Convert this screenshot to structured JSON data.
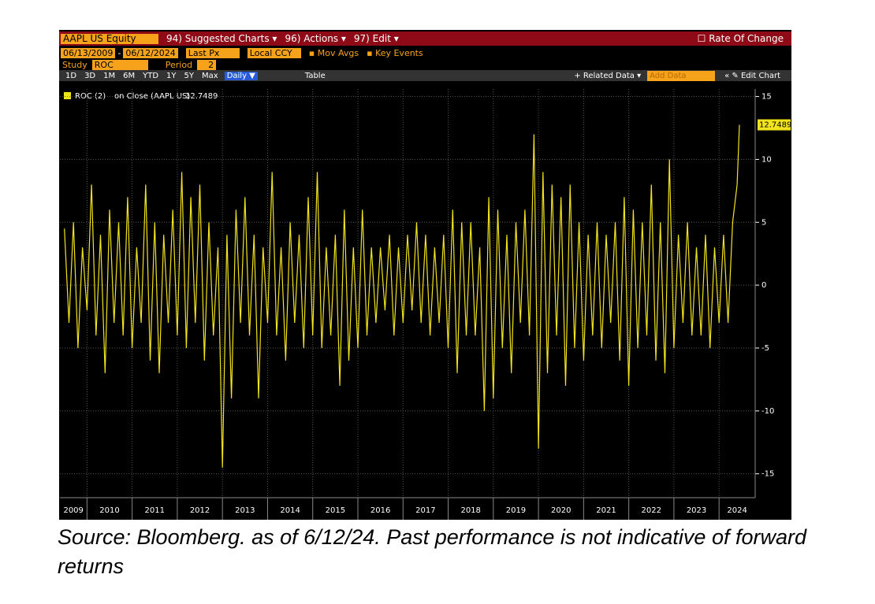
{
  "header": {
    "security": "AAPL US Equity",
    "menu": [
      "94) Suggested Charts ▾",
      "96) Actions ▾",
      "97) Edit ▾"
    ],
    "chart_name": "Rate Of Change"
  },
  "settings": {
    "start_date": "06/13/2009",
    "date_sep": "-",
    "end_date": "06/12/2024",
    "price": "Last Px",
    "currency": "Local CCY",
    "mov_avgs": "Mov Avgs",
    "key_events": "Key Events",
    "study_label": "Study",
    "study": "ROC",
    "period_label": "Period",
    "period": "2"
  },
  "toolbar": {
    "ranges": [
      "1D",
      "3D",
      "1M",
      "6M",
      "YTD",
      "1Y",
      "5Y",
      "Max"
    ],
    "frequency": "Daily ▼",
    "table": "Table",
    "related": "+ Related Data ▾",
    "add_data": "Add Data",
    "edit_chart": "Edit Chart"
  },
  "chart_data": {
    "type": "line",
    "legend_value_suffix": "on Close (AAPL US)",
    "xlim": [
      2009.4,
      2024.8
    ],
    "xticks": [
      2009,
      2010,
      2011,
      2012,
      2013,
      2014,
      2015,
      2016,
      2017,
      2018,
      2019,
      2020,
      2021,
      2022,
      2023,
      2024
    ],
    "ylim": [
      -16.9,
      15.6
    ],
    "yticks": [
      -15,
      -10,
      -5,
      0,
      5,
      10,
      15
    ],
    "grid": true,
    "series": [
      {
        "name": "ROC (2)",
        "color": "#f2e41c",
        "x": [
          2009.5,
          2009.6,
          2009.7,
          2009.8,
          2009.9,
          2010.0,
          2010.1,
          2010.2,
          2010.3,
          2010.4,
          2010.5,
          2010.6,
          2010.7,
          2010.8,
          2010.9,
          2011.0,
          2011.1,
          2011.2,
          2011.3,
          2011.4,
          2011.5,
          2011.6,
          2011.7,
          2011.8,
          2011.9,
          2012.0,
          2012.1,
          2012.2,
          2012.3,
          2012.4,
          2012.5,
          2012.6,
          2012.7,
          2012.8,
          2012.9,
          2013.0,
          2013.1,
          2013.2,
          2013.3,
          2013.4,
          2013.5,
          2013.6,
          2013.7,
          2013.8,
          2013.9,
          2014.0,
          2014.1,
          2014.2,
          2014.3,
          2014.4,
          2014.5,
          2014.6,
          2014.7,
          2014.8,
          2014.9,
          2015.0,
          2015.1,
          2015.2,
          2015.3,
          2015.4,
          2015.5,
          2015.6,
          2015.7,
          2015.8,
          2015.9,
          2016.0,
          2016.1,
          2016.2,
          2016.3,
          2016.4,
          2016.5,
          2016.6,
          2016.7,
          2016.8,
          2016.9,
          2017.0,
          2017.1,
          2017.2,
          2017.3,
          2017.4,
          2017.5,
          2017.6,
          2017.7,
          2017.8,
          2017.9,
          2018.0,
          2018.1,
          2018.2,
          2018.3,
          2018.4,
          2018.5,
          2018.6,
          2018.7,
          2018.8,
          2018.9,
          2019.0,
          2019.1,
          2019.2,
          2019.3,
          2019.4,
          2019.5,
          2019.6,
          2019.7,
          2019.8,
          2019.9,
          2020.0,
          2020.1,
          2020.2,
          2020.3,
          2020.4,
          2020.5,
          2020.6,
          2020.7,
          2020.8,
          2020.9,
          2021.0,
          2021.1,
          2021.2,
          2021.3,
          2021.4,
          2021.5,
          2021.6,
          2021.7,
          2021.8,
          2021.9,
          2022.0,
          2022.1,
          2022.2,
          2022.3,
          2022.4,
          2022.5,
          2022.6,
          2022.7,
          2022.8,
          2022.9,
          2023.0,
          2023.1,
          2023.2,
          2023.3,
          2023.4,
          2023.5,
          2023.6,
          2023.7,
          2023.8,
          2023.9,
          2024.0,
          2024.1,
          2024.2,
          2024.3,
          2024.4,
          2024.45
        ],
        "values": [
          4.5,
          -3,
          5,
          -5,
          3,
          -2,
          8,
          -4,
          4,
          -7,
          6,
          -3,
          5,
          -4,
          7,
          -5,
          3,
          -3,
          8,
          -6,
          5,
          -7,
          4,
          -3,
          6,
          -4,
          9,
          -5,
          7,
          -3,
          8,
          -6,
          5,
          -4,
          3,
          -14.5,
          4,
          -9,
          6,
          -3,
          7,
          -4,
          4,
          -9,
          3,
          -3,
          9,
          -4,
          3,
          -6,
          5,
          -3,
          4,
          -5,
          7,
          -4,
          9,
          -5,
          3,
          -4,
          4,
          -8,
          6,
          -6,
          3,
          -5,
          6,
          -4,
          3,
          -3,
          3,
          -2,
          4,
          -4,
          3,
          -3,
          4,
          -2,
          5,
          -3,
          4,
          -4,
          3,
          -3,
          4,
          -5,
          6,
          -7,
          5,
          -4,
          5,
          -4,
          3,
          -10,
          7,
          -9,
          6,
          -5,
          4,
          -7,
          5,
          -3,
          6,
          -4,
          12,
          -13,
          9,
          -7,
          8,
          -4,
          7,
          -8,
          8,
          -5,
          5,
          -6,
          4,
          -4,
          5,
          -5,
          4,
          -3,
          5,
          -6,
          7,
          -8,
          6,
          -5,
          5,
          -4,
          8,
          -6,
          5,
          -7,
          10,
          -5,
          4,
          -3,
          5,
          -4,
          3,
          -4,
          4,
          -5,
          3,
          -3,
          4,
          -3,
          5,
          8,
          12.7489
        ]
      }
    ]
  },
  "source_note": "Source: Bloomberg. as of 6/12/24. Past performance is not indicative of forward returns"
}
